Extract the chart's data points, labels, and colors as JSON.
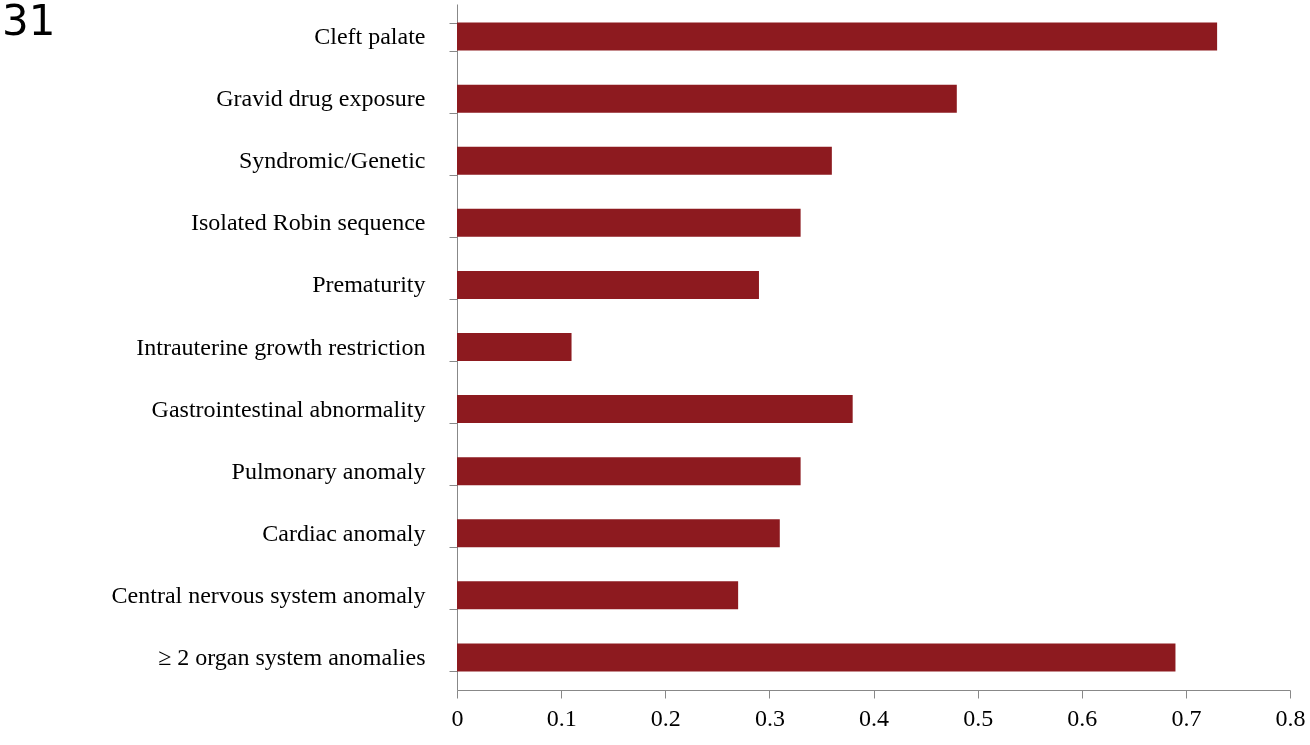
{
  "chart_data": {
    "type": "bar",
    "orientation": "horizontal",
    "categories": [
      "Cleft palate",
      "Gravid drug exposure",
      "Syndromic/Genetic",
      "Isolated Robin sequence",
      "Prematurity",
      "Intrauterine growth restriction",
      "Gastrointestinal abnormality",
      "Pulmonary anomaly",
      "Cardiac anomaly",
      "Central nervous system anomaly",
      "≥ 2 organ system anomalies"
    ],
    "values": [
      0.73,
      0.48,
      0.36,
      0.33,
      0.29,
      0.11,
      0.38,
      0.33,
      0.31,
      0.27,
      0.69
    ],
    "color": "#8d1a1f",
    "xlim": [
      0,
      0.8
    ],
    "xticks": [
      0,
      0.1,
      0.2,
      0.3,
      0.4,
      0.5,
      0.6,
      0.7,
      0.8
    ],
    "grid": false,
    "annotations": [
      "31"
    ]
  }
}
